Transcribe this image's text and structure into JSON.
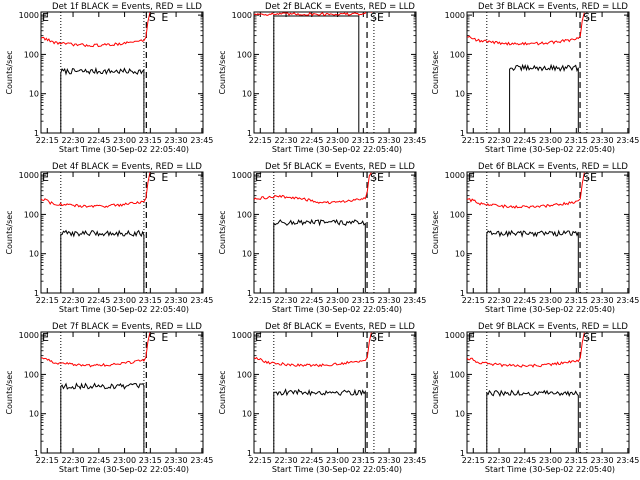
{
  "page": {
    "background": "#ffffff"
  },
  "colors": {
    "events": "#000000",
    "lld": "#ff0000",
    "axes": "#000000"
  },
  "chart_data": [
    {
      "type": "line",
      "title": "Det 1f BLACK = Events, RED = LLD",
      "xlabel": "Start Time (30-Sep-02 22:05:40)",
      "ylabel": "Counts/sec",
      "x_ticks": [
        "22:15",
        "22:30",
        "22:45",
        "23:00",
        "23:15",
        "23:30",
        "23:45"
      ],
      "y_ticks": [
        "1",
        "10",
        "100",
        "1000"
      ],
      "ylim": [
        1,
        1200
      ],
      "xlim_min": [
        5.67,
        100
      ],
      "log_y": true,
      "vlines_dotted_min": [
        17.2,
        65.6,
        104.6
      ],
      "vlines_dashed_min": [
        67,
        103.3
      ],
      "markers": [
        {
          "text": "E",
          "x_min": 5.7
        },
        {
          "text": "S",
          "x_min": 67.8
        },
        {
          "text": "E",
          "x_min": 75.2
        }
      ],
      "series": [
        {
          "name": "Events",
          "color": "#000000",
          "level": 37,
          "x_start_min": 17.2,
          "x_end_min": 65.6,
          "shape": "flat"
        },
        {
          "name": "LLD",
          "color": "#ff0000",
          "level": 170,
          "x_start_min": 5.7,
          "x_end_min": 65.6,
          "shape": "bowl"
        }
      ]
    },
    {
      "type": "line",
      "title": "Det 2f BLACK = Events, RED = LLD",
      "xlabel": "Start Time (30-Sep-02 22:05:40)",
      "ylabel": "Counts/sec",
      "x_ticks": [
        "22:15",
        "22:30",
        "22:45",
        "23:00",
        "23:15",
        "23:30",
        "23:45"
      ],
      "y_ticks": [
        "1",
        "10",
        "100",
        "1000"
      ],
      "ylim": [
        1,
        1200
      ],
      "xlim_min": [
        5.67,
        100
      ],
      "log_y": true,
      "vlines_dotted_min": [
        17.2,
        75.5,
        104.6
      ],
      "vlines_dashed_min": [
        71.5,
        103.3
      ],
      "markers": [
        {
          "text": "S",
          "x_min": 72.6
        },
        {
          "text": "E",
          "x_min": 76.7
        }
      ],
      "series": [
        {
          "name": "Events",
          "color": "#000000",
          "level": 950,
          "x_start_min": 17.2,
          "x_end_min": 66.7,
          "shape": "step"
        },
        {
          "name": "LLD",
          "color": "#ff0000",
          "level": 1060,
          "x_start_min": 5.7,
          "x_end_min": 70.5,
          "shape": "flat"
        }
      ]
    },
    {
      "type": "line",
      "title": "Det 3f BLACK = Events, RED = LLD",
      "xlabel": "Start Time (30-Sep-02 22:05:40)",
      "ylabel": "Counts/sec",
      "x_ticks": [
        "22:15",
        "22:30",
        "22:45",
        "23:00",
        "23:15",
        "23:30",
        "23:45"
      ],
      "y_ticks": [
        "1",
        "10",
        "100",
        "1000"
      ],
      "ylim": [
        1,
        1200
      ],
      "xlim_min": [
        5.67,
        100
      ],
      "log_y": true,
      "vlines_dotted_min": [
        17.2,
        75.5,
        104.6
      ],
      "vlines_dashed_min": [
        71.5,
        103.3
      ],
      "markers": [
        {
          "text": "S",
          "x_min": 72.6
        },
        {
          "text": "E",
          "x_min": 76.7
        }
      ],
      "series": [
        {
          "name": "Events",
          "color": "#000000",
          "level": 45,
          "x_start_min": 30.5,
          "x_end_min": 70.5,
          "shape": "flat"
        },
        {
          "name": "LLD",
          "color": "#ff0000",
          "level": 185,
          "x_start_min": 5.7,
          "x_end_min": 70.5,
          "shape": "bowl"
        }
      ]
    },
    {
      "type": "line",
      "title": "Det 4f BLACK = Events, RED = LLD",
      "xlabel": "Start Time (30-Sep-02 22:05:40)",
      "ylabel": "Counts/sec",
      "x_ticks": [
        "22:15",
        "22:30",
        "22:45",
        "23:00",
        "23:15",
        "23:30",
        "23:45"
      ],
      "y_ticks": [
        "1",
        "10",
        "100",
        "1000"
      ],
      "ylim": [
        1,
        1200
      ],
      "xlim_min": [
        5.67,
        100
      ],
      "log_y": true,
      "vlines_dotted_min": [
        17.2,
        65.6,
        104.6
      ],
      "vlines_dashed_min": [
        67,
        103.3
      ],
      "markers": [
        {
          "text": "E",
          "x_min": 5.7
        },
        {
          "text": "S",
          "x_min": 67.8
        },
        {
          "text": "E",
          "x_min": 75.2
        }
      ],
      "series": [
        {
          "name": "Events",
          "color": "#000000",
          "level": 33,
          "x_start_min": 17.2,
          "x_end_min": 65.6,
          "shape": "flat"
        },
        {
          "name": "LLD",
          "color": "#ff0000",
          "level": 160,
          "x_start_min": 5.7,
          "x_end_min": 65.6,
          "shape": "bowl"
        }
      ]
    },
    {
      "type": "line",
      "title": "Det 5f BLACK = Events, RED = LLD",
      "xlabel": "Start Time (30-Sep-02 22:05:40)",
      "ylabel": "Counts/sec",
      "x_ticks": [
        "22:15",
        "22:30",
        "22:45",
        "23:00",
        "23:15",
        "23:30",
        "23:45"
      ],
      "y_ticks": [
        "1",
        "10",
        "100",
        "1000"
      ],
      "ylim": [
        1,
        1200
      ],
      "xlim_min": [
        5.67,
        100
      ],
      "log_y": true,
      "vlines_dotted_min": [
        17.2,
        75.5,
        104.6
      ],
      "vlines_dashed_min": [
        71.5,
        103.3
      ],
      "markers": [
        {
          "text": "E",
          "x_min": 5.7
        },
        {
          "text": "S",
          "x_min": 72.6
        },
        {
          "text": "E",
          "x_min": 76.7
        }
      ],
      "series": [
        {
          "name": "Events",
          "color": "#000000",
          "level": 62,
          "x_start_min": 17.2,
          "x_end_min": 70.5,
          "shape": "flat"
        },
        {
          "name": "LLD",
          "color": "#ff0000",
          "level": 240,
          "x_start_min": 5.7,
          "x_end_min": 70.5,
          "shape": "hump"
        }
      ]
    },
    {
      "type": "line",
      "title": "Det 6f BLACK = Events, RED = LLD",
      "xlabel": "Start Time (30-Sep-02 22:05:40)",
      "ylabel": "Counts/sec",
      "x_ticks": [
        "22:15",
        "22:30",
        "22:45",
        "23:00",
        "23:15",
        "23:30",
        "23:45"
      ],
      "y_ticks": [
        "1",
        "10",
        "100",
        "1000"
      ],
      "ylim": [
        1,
        1200
      ],
      "xlim_min": [
        5.67,
        100
      ],
      "log_y": true,
      "vlines_dotted_min": [
        17.2,
        75.5,
        104.6
      ],
      "vlines_dashed_min": [
        71.5,
        103.3
      ],
      "markers": [
        {
          "text": "E",
          "x_min": 5.7
        },
        {
          "text": "S",
          "x_min": 72.6
        },
        {
          "text": "E",
          "x_min": 76.7
        }
      ],
      "series": [
        {
          "name": "Events",
          "color": "#000000",
          "level": 33,
          "x_start_min": 17.2,
          "x_end_min": 70.5,
          "shape": "flat"
        },
        {
          "name": "LLD",
          "color": "#ff0000",
          "level": 155,
          "x_start_min": 5.7,
          "x_end_min": 70.5,
          "shape": "bowl"
        }
      ]
    },
    {
      "type": "line",
      "title": "Det 7f BLACK = Events, RED = LLD",
      "xlabel": "Start Time (30-Sep-02 22:05:40)",
      "ylabel": "Counts/sec",
      "x_ticks": [
        "22:15",
        "22:30",
        "22:45",
        "23:00",
        "23:15",
        "23:30",
        "23:45"
      ],
      "y_ticks": [
        "1",
        "10",
        "100",
        "1000"
      ],
      "ylim": [
        1,
        1200
      ],
      "xlim_min": [
        5.67,
        100
      ],
      "log_y": true,
      "vlines_dotted_min": [
        17.2,
        65.6,
        104.6
      ],
      "vlines_dashed_min": [
        67,
        103.3
      ],
      "markers": [
        {
          "text": "E",
          "x_min": 5.7
        },
        {
          "text": "S",
          "x_min": 67.8
        },
        {
          "text": "E",
          "x_min": 75.2
        }
      ],
      "series": [
        {
          "name": "Events",
          "color": "#000000",
          "level": 50,
          "x_start_min": 17.2,
          "x_end_min": 65.6,
          "shape": "flat"
        },
        {
          "name": "LLD",
          "color": "#ff0000",
          "level": 170,
          "x_start_min": 5.7,
          "x_end_min": 65.6,
          "shape": "bowl"
        }
      ]
    },
    {
      "type": "line",
      "title": "Det 8f BLACK = Events, RED = LLD",
      "xlabel": "Start Time (30-Sep-02 22:05:40)",
      "ylabel": "Counts/sec",
      "x_ticks": [
        "22:15",
        "22:30",
        "22:45",
        "23:00",
        "23:15",
        "23:30",
        "23:45"
      ],
      "y_ticks": [
        "1",
        "10",
        "100",
        "1000"
      ],
      "ylim": [
        1,
        1200
      ],
      "xlim_min": [
        5.67,
        100
      ],
      "log_y": true,
      "vlines_dotted_min": [
        17.2,
        75.5,
        104.6
      ],
      "vlines_dashed_min": [
        71.5,
        103.3
      ],
      "markers": [
        {
          "text": "E",
          "x_min": 5.7
        },
        {
          "text": "S",
          "x_min": 72.6
        },
        {
          "text": "E",
          "x_min": 76.7
        }
      ],
      "series": [
        {
          "name": "Events",
          "color": "#000000",
          "level": 35,
          "x_start_min": 17.2,
          "x_end_min": 70.5,
          "shape": "flat"
        },
        {
          "name": "LLD",
          "color": "#ff0000",
          "level": 170,
          "x_start_min": 5.7,
          "x_end_min": 70.5,
          "shape": "bowl"
        }
      ]
    },
    {
      "type": "line",
      "title": "Det 9f BLACK = Events, RED = LLD",
      "xlabel": "Start Time (30-Sep-02 22:05:40)",
      "ylabel": "Counts/sec",
      "x_ticks": [
        "22:15",
        "22:30",
        "22:45",
        "23:00",
        "23:15",
        "23:30",
        "23:45"
      ],
      "y_ticks": [
        "1",
        "10",
        "100",
        "1000"
      ],
      "ylim": [
        1,
        1200
      ],
      "xlim_min": [
        5.67,
        100
      ],
      "log_y": true,
      "vlines_dotted_min": [
        17.2,
        75.5,
        104.6
      ],
      "vlines_dashed_min": [
        71.5,
        103.3
      ],
      "markers": [
        {
          "text": "E",
          "x_min": 5.7
        },
        {
          "text": "S",
          "x_min": 72.6
        },
        {
          "text": "E",
          "x_min": 76.7
        }
      ],
      "series": [
        {
          "name": "Events",
          "color": "#000000",
          "level": 33,
          "x_start_min": 17.2,
          "x_end_min": 70.5,
          "shape": "flat"
        },
        {
          "name": "LLD",
          "color": "#ff0000",
          "level": 165,
          "x_start_min": 5.7,
          "x_end_min": 70.5,
          "shape": "bowl"
        }
      ]
    }
  ]
}
